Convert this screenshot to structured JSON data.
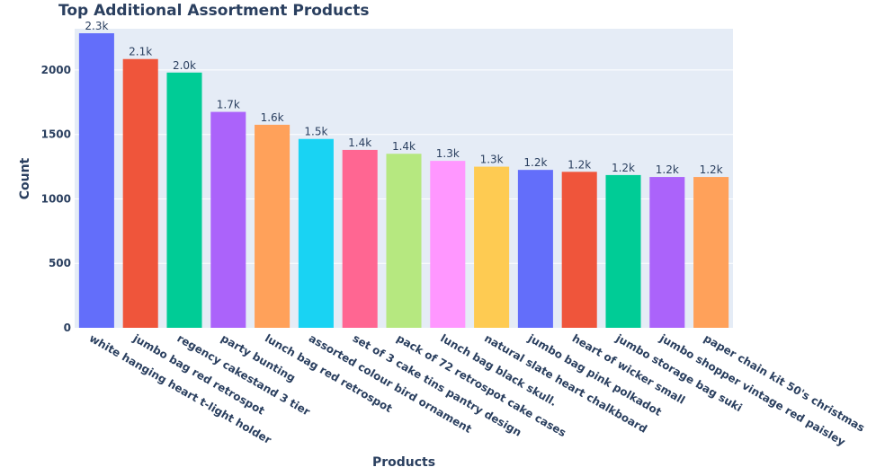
{
  "chart_data": {
    "type": "bar",
    "title": "Top Additional Assortment Products",
    "xlabel": "Products",
    "ylabel": "Count",
    "ylim": [
      0,
      2320
    ],
    "yticks": [
      0,
      500,
      1000,
      1500,
      2000
    ],
    "grid": true,
    "legend": "none",
    "plot_bg": "#e5ecf6",
    "categories": [
      "white hanging heart t-light holder",
      "jumbo bag red retrospot",
      "regency cakestand 3 tier",
      "party bunting",
      "lunch bag red retrospot",
      "assorted colour bird ornament",
      "set of 3 cake tins pantry design",
      "pack of 72 retrospot cake cases",
      "lunch bag  black skull.",
      "natural slate heart chalkboard",
      "jumbo bag pink polkadot",
      "heart of wicker small",
      "jumbo storage bag suki",
      "jumbo shopper vintage red paisley",
      "paper chain kit 50's christmas"
    ],
    "values": [
      2285,
      2085,
      1980,
      1675,
      1575,
      1465,
      1380,
      1350,
      1295,
      1250,
      1225,
      1210,
      1185,
      1170,
      1170
    ],
    "data_labels": [
      "2.3k",
      "2.1k",
      "2.0k",
      "1.7k",
      "1.6k",
      "1.5k",
      "1.4k",
      "1.4k",
      "1.3k",
      "1.3k",
      "1.2k",
      "1.2k",
      "1.2k",
      "1.2k",
      "1.2k"
    ],
    "colors": [
      "#636efa",
      "#ef553b",
      "#00cc96",
      "#ab63fa",
      "#ffa15a",
      "#19d3f3",
      "#ff6692",
      "#b6e880",
      "#ff97ff",
      "#fecb52",
      "#636efa",
      "#ef553b",
      "#00cc96",
      "#ab63fa",
      "#ffa15a"
    ]
  }
}
